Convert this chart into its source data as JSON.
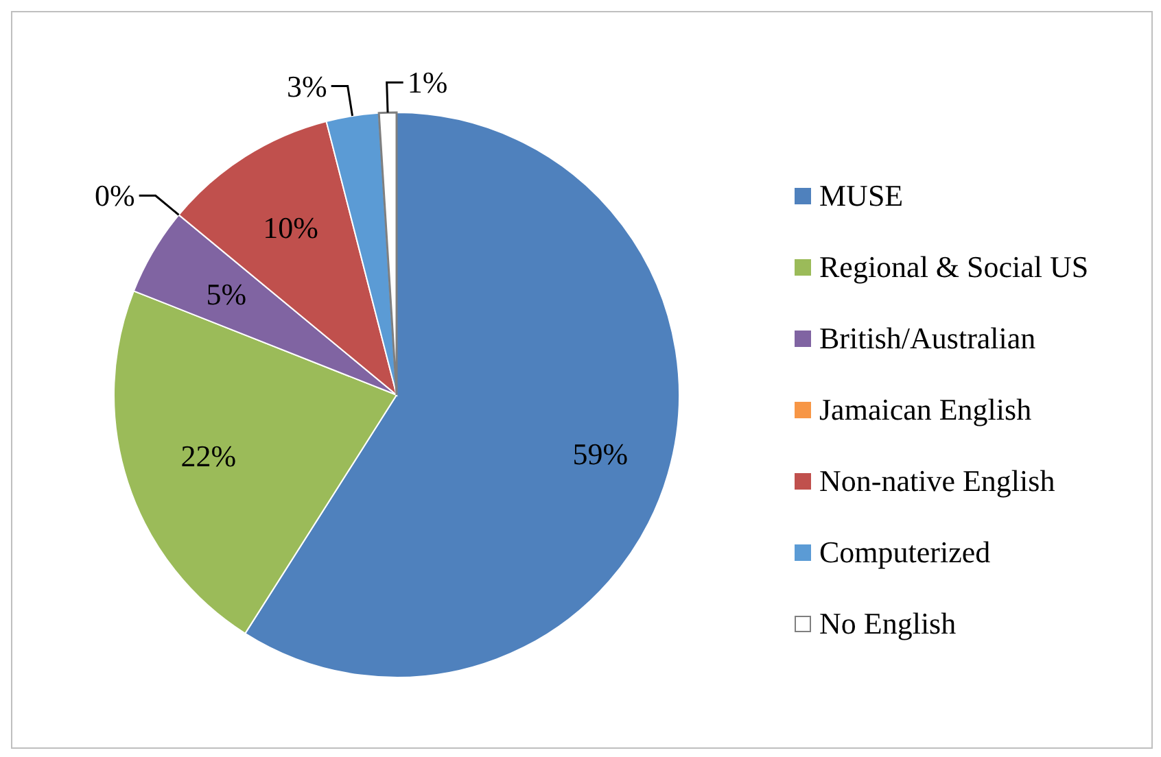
{
  "chart_data": {
    "type": "pie",
    "categories": [
      "MUSE",
      "Regional & Social US",
      "British/Australian",
      "Jamaican English",
      "Non-native English",
      "Computerized",
      "No English"
    ],
    "values": [
      59,
      22,
      5,
      0,
      10,
      3,
      1
    ],
    "colors": [
      "#4f81bd",
      "#9bbb59",
      "#8064a2",
      "#f79646",
      "#c0504d",
      "#5b9bd5",
      "#ffffff"
    ],
    "value_labels": [
      "59%",
      "22%",
      "5%",
      "0%",
      "10%",
      "3%",
      "1%"
    ],
    "legend": "right"
  }
}
